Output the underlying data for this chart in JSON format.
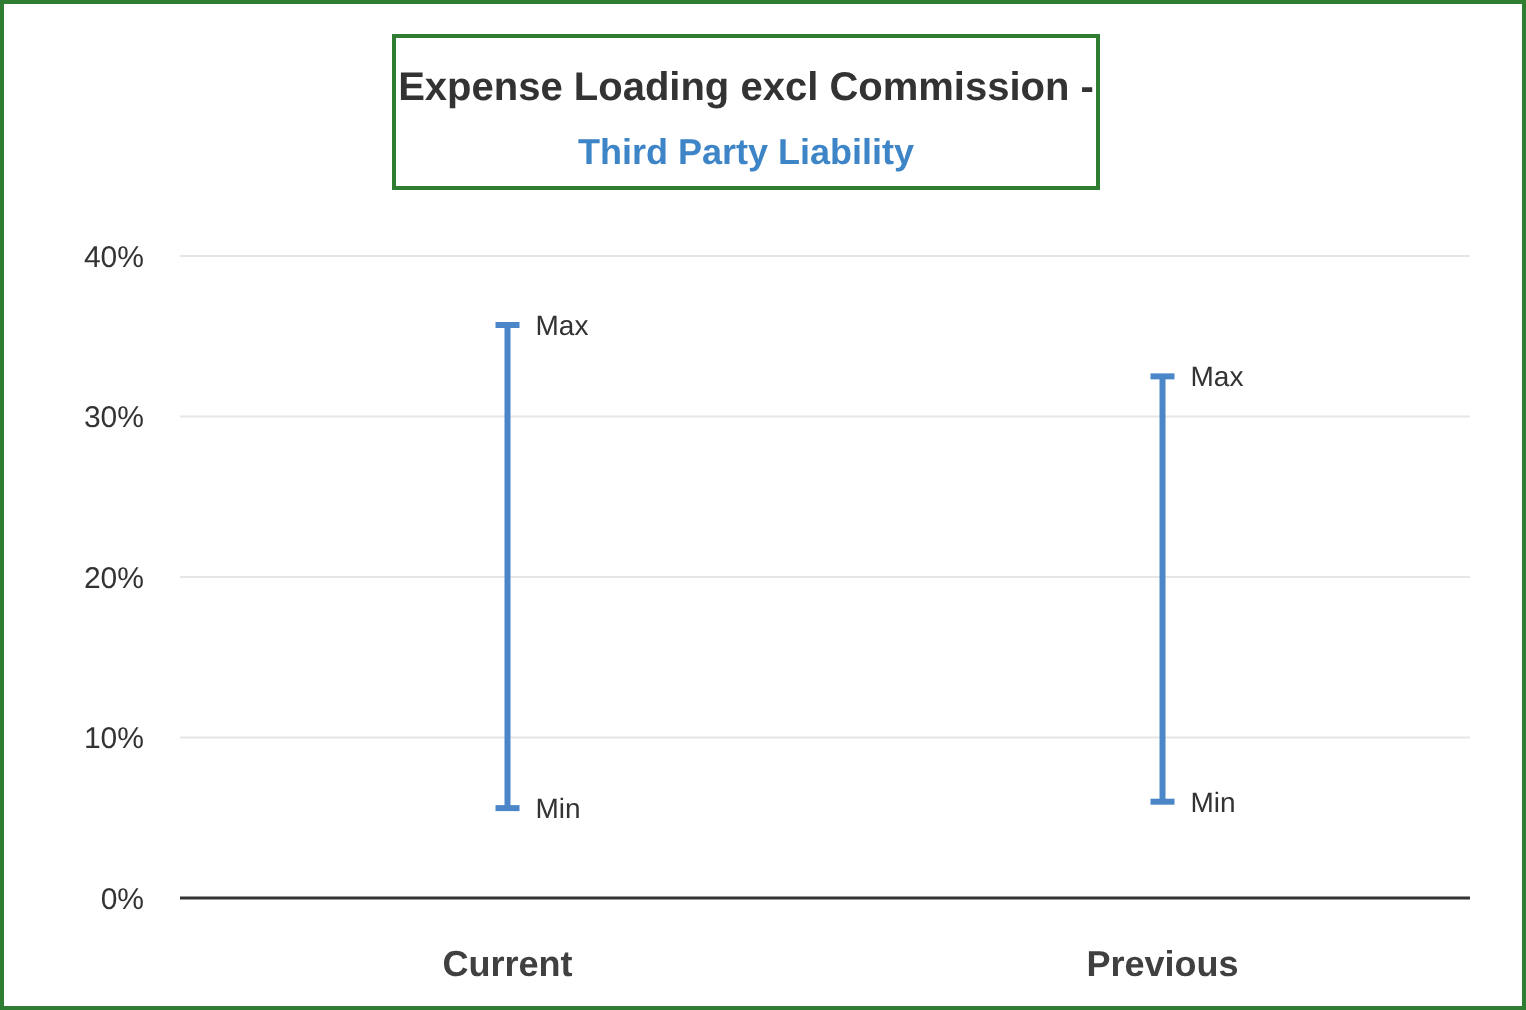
{
  "chart_data": {
    "type": "bar",
    "title": "Expense Loading excl Commission -",
    "subtitle": "Third Party Liability",
    "categories": [
      "Current",
      "Previous"
    ],
    "values": [
      30.1,
      26.5
    ],
    "base": [
      5.6,
      6.0
    ],
    "color": "#4a86c8",
    "ylim": [
      0,
      40
    ],
    "yticks": [
      {
        "value": 0,
        "label": "0%"
      },
      {
        "value": 10,
        "label": "10%"
      },
      {
        "value": 20,
        "label": "20%"
      },
      {
        "value": 30,
        "label": "30%"
      },
      {
        "value": 40,
        "label": "40%"
      }
    ],
    "grid": "y",
    "annotations": [
      {
        "text": "Max",
        "x": "Current",
        "y": 35.7
      },
      {
        "text": "Min",
        "x": "Current",
        "y": 5.6
      },
      {
        "text": "Max",
        "x": "Previous",
        "y": 32.5
      },
      {
        "text": "Min",
        "x": "Previous",
        "y": 6.0
      }
    ]
  }
}
